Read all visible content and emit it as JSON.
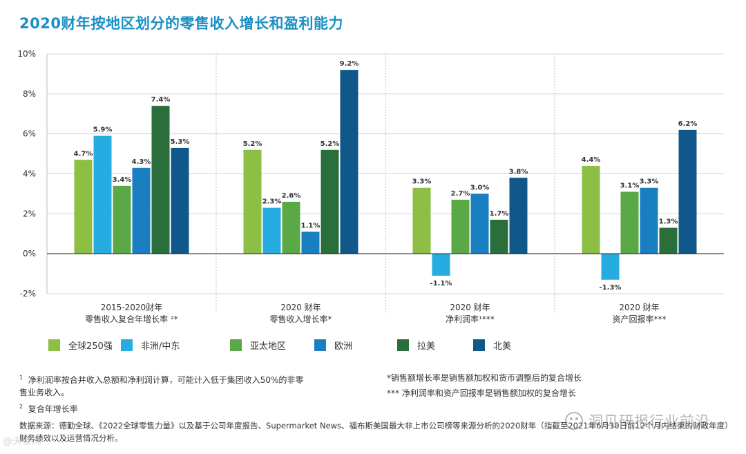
{
  "title": "2020财年按地区划分的零售收入增长和盈利能力",
  "chart_data": {
    "type": "bar",
    "title": "2020财年按地区划分的零售收入增长和盈利能力",
    "categories": [
      [
        "2015-2020财年",
        "零售收入复合年增长率 ²*"
      ],
      [
        "2020 财年",
        "零售收入增长率*"
      ],
      [
        "2020 财年",
        "净利润率¹***"
      ],
      [
        "2020 财年",
        "资产回报率***"
      ]
    ],
    "ylim": [
      -2,
      10
    ],
    "yticks": [
      10,
      8,
      6,
      4,
      2,
      0,
      -2
    ],
    "ytick_labels": [
      "10%",
      "8%",
      "6%",
      "4%",
      "2%",
      "0%",
      "-2%"
    ],
    "grid": true,
    "series": [
      {
        "name": "全球250强",
        "color": "#8cbf44",
        "values": [
          4.7,
          5.2,
          3.3,
          4.4
        ],
        "labels": [
          "4.7%",
          "5.2%",
          "3.3%",
          "4.4%"
        ]
      },
      {
        "name": "非洲/中东",
        "color": "#27ace2",
        "values": [
          5.9,
          2.3,
          -1.1,
          -1.3
        ],
        "labels": [
          "5.9%",
          "2.3%",
          "-1.1%",
          "-1.3%"
        ]
      },
      {
        "name": "亚太地区",
        "color": "#5aa846",
        "values": [
          3.4,
          2.6,
          2.7,
          3.1
        ],
        "labels": [
          "3.4%",
          "2.6%",
          "2.7%",
          "3.1%"
        ]
      },
      {
        "name": "欧洲",
        "color": "#1a7fc1",
        "values": [
          4.3,
          1.1,
          3.0,
          3.3
        ],
        "labels": [
          "4.3%",
          "1.1%",
          "3.0%",
          "3.3%"
        ]
      },
      {
        "name": "拉美",
        "color": "#2a6e3b",
        "values": [
          7.4,
          5.2,
          1.7,
          1.3
        ],
        "labels": [
          "7.4%",
          "5.2%",
          "1.7%",
          "1.3%"
        ]
      },
      {
        "name": "北美",
        "color": "#0f5889",
        "values": [
          5.3,
          9.2,
          3.8,
          6.2
        ],
        "labels": [
          "5.3%",
          "9.2%",
          "3.8%",
          "6.2%"
        ]
      }
    ]
  },
  "notes": {
    "note1_marker": "1",
    "note1_line1": "净利润率按合并收入总额和净利润计算，可能计入低于集团收入50%的非零",
    "note1_line2": "售业务收入。",
    "note2_marker": "2",
    "note2_text": "复合年增长率",
    "note3": "*销售额增长率是销售额加权和货币调整后的复合增长",
    "note4": "*** 净利润率和资产回报率是销售额加权的复合增长"
  },
  "source": {
    "line1": "数据来源：德勤全球、《2022全球零售力量》以及基于公司年度报告、Supermarket News、福布斯美国最大非上市公司榜等来源分析的2020财年（指截至2021年6月30日前12个月内结束的财政年度）财务绩效以及运营情况分析。"
  },
  "watermark": {
    "text": "洞见研报行业前沿",
    "left_text": "@天象网"
  }
}
